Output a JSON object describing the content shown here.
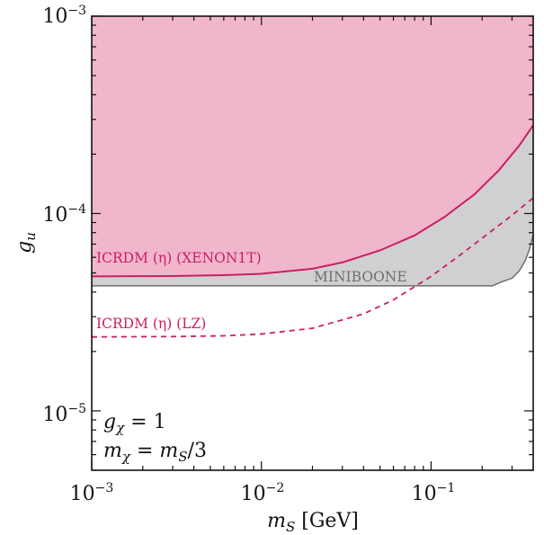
{
  "chart_data": {
    "type": "area",
    "xlabel": "m_S [GeV]",
    "ylabel": "g_u",
    "xscale": "log",
    "yscale": "log",
    "xlim": [
      0.001,
      0.4
    ],
    "ylim": [
      5e-06,
      0.001
    ],
    "x_ticks": [
      "10^-3",
      "10^-2",
      "10^-1"
    ],
    "y_ticks": [
      "10^-5",
      "10^-4",
      "10^-3"
    ],
    "grid": false,
    "annotations": [
      "g_χ = 1",
      "m_χ = m_S/3"
    ],
    "colors": {
      "xenon": "#cc1f5f",
      "xenon_fill": "#f2b6cc",
      "miniboone": "#6e6e6e",
      "miniboone_fill": "#d0d0d2"
    },
    "series": [
      {
        "name": "ICRDM (η) (XENON1T)",
        "style": "solid, filled above",
        "x": [
          0.001,
          0.003,
          0.006,
          0.01,
          0.02,
          0.03,
          0.05,
          0.08,
          0.12,
          0.18,
          0.25,
          0.33,
          0.4
        ],
        "y": [
          4.8e-05,
          4.82e-05,
          4.87e-05,
          4.95e-05,
          5.25e-05,
          5.65e-05,
          6.5e-05,
          7.75e-05,
          9.6e-05,
          0.000125,
          0.000165,
          0.00022,
          0.00028
        ]
      },
      {
        "name": "MINIBOONE",
        "style": "solid, filled",
        "x": [
          0.001,
          0.01,
          0.1,
          0.23,
          0.26,
          0.3,
          0.33,
          0.36,
          0.38,
          0.4
        ],
        "y": [
          4.3e-05,
          4.3e-05,
          4.3e-05,
          4.3e-05,
          4.5e-05,
          4.7e-05,
          5.1e-05,
          5.8e-05,
          6.6e-05,
          7.8e-05
        ]
      },
      {
        "name": "ICRDM (η) (LZ)",
        "style": "dashed",
        "x": [
          0.001,
          0.003,
          0.006,
          0.01,
          0.02,
          0.04,
          0.06,
          0.1,
          0.15,
          0.2,
          0.3,
          0.4
        ],
        "y": [
          2.37e-05,
          2.38e-05,
          2.4e-05,
          2.45e-05,
          2.62e-05,
          3.1e-05,
          3.65e-05,
          4.8e-05,
          6.2e-05,
          7.5e-05,
          9.8e-05,
          0.00012
        ]
      }
    ]
  },
  "labels": {
    "xenon": "ICRDM (η) (XENON1T)",
    "lz": "ICRDM (η) (LZ)",
    "miniboone": "MINIBOONE"
  }
}
